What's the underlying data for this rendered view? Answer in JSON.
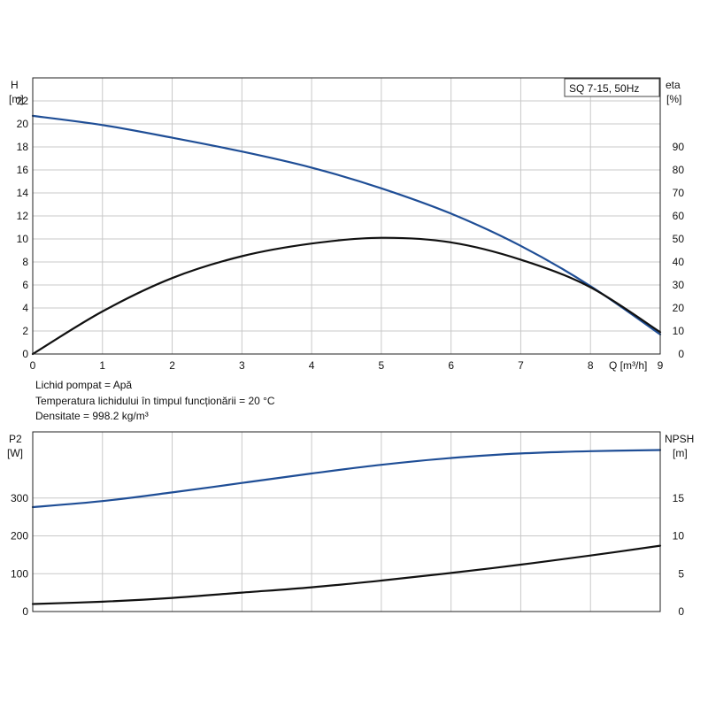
{
  "chart_data": [
    {
      "type": "line",
      "title": "SQ 7-15, 50Hz",
      "xlabel": "Q [m³/h]",
      "xlim": [
        0,
        9
      ],
      "x_ticks": [
        "0",
        "1",
        "2",
        "3",
        "4",
        "5",
        "6",
        "7",
        "8",
        "9"
      ],
      "left_axis": {
        "label_line1": "H",
        "label_line2": "[m]",
        "ylim": [
          0,
          24
        ],
        "ticks": [
          "0",
          "2",
          "4",
          "6",
          "8",
          "10",
          "12",
          "14",
          "16",
          "18",
          "20",
          "22"
        ]
      },
      "right_axis": {
        "label_line1": "eta",
        "label_line2": "[%]",
        "ylim": [
          0,
          120
        ],
        "ticks": [
          "0",
          "10",
          "20",
          "30",
          "40",
          "50",
          "60",
          "70",
          "80",
          "90"
        ]
      },
      "grid": true,
      "series": [
        {
          "axis": "left",
          "color": "#1f4e96",
          "x": [
            0,
            1,
            2,
            3,
            4,
            5,
            6,
            7,
            8,
            9
          ],
          "y": [
            20.7,
            19.9,
            18.8,
            17.6,
            16.2,
            14.4,
            12.2,
            9.4,
            5.9,
            1.7
          ]
        },
        {
          "axis": "right",
          "color": "#111111",
          "x": [
            0,
            1,
            2,
            3,
            4,
            5,
            6,
            7,
            8,
            9
          ],
          "y": [
            0,
            18.5,
            33,
            42.5,
            48,
            50.5,
            48.5,
            41,
            29,
            9.5
          ]
        }
      ]
    },
    {
      "type": "line",
      "xlim": [
        0,
        9
      ],
      "left_axis": {
        "label_line1": "P2",
        "label_line2": "[W]",
        "ylim": [
          0,
          475
        ],
        "ticks": [
          "0",
          "100",
          "200",
          "300"
        ]
      },
      "right_axis": {
        "label_line1": "NPSH",
        "label_line2": "[m]",
        "ylim": [
          0,
          23.75
        ],
        "ticks": [
          "0",
          "5",
          "10",
          "15"
        ]
      },
      "grid": true,
      "series": [
        {
          "axis": "left",
          "color": "#1f4e96",
          "x": [
            0,
            1,
            2,
            3,
            4,
            5,
            6,
            7,
            8,
            9
          ],
          "y": [
            276,
            292,
            315,
            340,
            365,
            388,
            406,
            418,
            424,
            427
          ]
        },
        {
          "axis": "right",
          "color": "#111111",
          "x": [
            0,
            1,
            2,
            3,
            4,
            5,
            6,
            7,
            8,
            9
          ],
          "y": [
            1.0,
            1.3,
            1.8,
            2.5,
            3.2,
            4.1,
            5.1,
            6.2,
            7.4,
            8.7
          ]
        }
      ]
    }
  ],
  "info": {
    "liquid": "Lichid pompat = Apă",
    "temperature": "Temperatura lichidului în timpul funcționării = 20 °C",
    "density": "Densitate = 998.2 kg/m³"
  }
}
